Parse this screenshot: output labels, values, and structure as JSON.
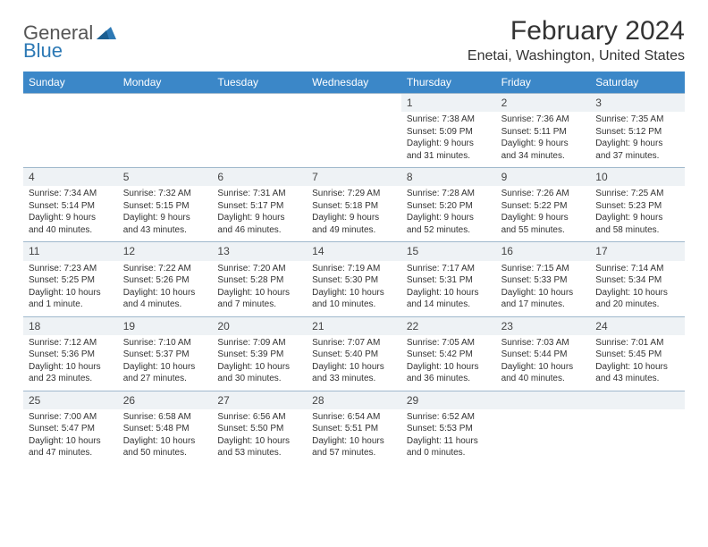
{
  "brand": {
    "part1": "General",
    "part2": "Blue"
  },
  "title": "February 2024",
  "location": "Enetai, Washington, United States",
  "colors": {
    "header_bg": "#3b87c8",
    "header_text": "#ffffff",
    "daynum_bg": "#eef2f5",
    "border": "#9fb8cc",
    "text": "#333333",
    "logo_gray": "#555555",
    "logo_blue": "#2d79b5",
    "background": "#ffffff"
  },
  "day_labels": [
    "Sunday",
    "Monday",
    "Tuesday",
    "Wednesday",
    "Thursday",
    "Friday",
    "Saturday"
  ],
  "layout": {
    "first_weekday_index": 4,
    "days_in_month": 29,
    "cells": 35
  },
  "days": {
    "1": {
      "sunrise": "7:38 AM",
      "sunset": "5:09 PM",
      "daylight": "9 hours and 31 minutes."
    },
    "2": {
      "sunrise": "7:36 AM",
      "sunset": "5:11 PM",
      "daylight": "9 hours and 34 minutes."
    },
    "3": {
      "sunrise": "7:35 AM",
      "sunset": "5:12 PM",
      "daylight": "9 hours and 37 minutes."
    },
    "4": {
      "sunrise": "7:34 AM",
      "sunset": "5:14 PM",
      "daylight": "9 hours and 40 minutes."
    },
    "5": {
      "sunrise": "7:32 AM",
      "sunset": "5:15 PM",
      "daylight": "9 hours and 43 minutes."
    },
    "6": {
      "sunrise": "7:31 AM",
      "sunset": "5:17 PM",
      "daylight": "9 hours and 46 minutes."
    },
    "7": {
      "sunrise": "7:29 AM",
      "sunset": "5:18 PM",
      "daylight": "9 hours and 49 minutes."
    },
    "8": {
      "sunrise": "7:28 AM",
      "sunset": "5:20 PM",
      "daylight": "9 hours and 52 minutes."
    },
    "9": {
      "sunrise": "7:26 AM",
      "sunset": "5:22 PM",
      "daylight": "9 hours and 55 minutes."
    },
    "10": {
      "sunrise": "7:25 AM",
      "sunset": "5:23 PM",
      "daylight": "9 hours and 58 minutes."
    },
    "11": {
      "sunrise": "7:23 AM",
      "sunset": "5:25 PM",
      "daylight": "10 hours and 1 minute."
    },
    "12": {
      "sunrise": "7:22 AM",
      "sunset": "5:26 PM",
      "daylight": "10 hours and 4 minutes."
    },
    "13": {
      "sunrise": "7:20 AM",
      "sunset": "5:28 PM",
      "daylight": "10 hours and 7 minutes."
    },
    "14": {
      "sunrise": "7:19 AM",
      "sunset": "5:30 PM",
      "daylight": "10 hours and 10 minutes."
    },
    "15": {
      "sunrise": "7:17 AM",
      "sunset": "5:31 PM",
      "daylight": "10 hours and 14 minutes."
    },
    "16": {
      "sunrise": "7:15 AM",
      "sunset": "5:33 PM",
      "daylight": "10 hours and 17 minutes."
    },
    "17": {
      "sunrise": "7:14 AM",
      "sunset": "5:34 PM",
      "daylight": "10 hours and 20 minutes."
    },
    "18": {
      "sunrise": "7:12 AM",
      "sunset": "5:36 PM",
      "daylight": "10 hours and 23 minutes."
    },
    "19": {
      "sunrise": "7:10 AM",
      "sunset": "5:37 PM",
      "daylight": "10 hours and 27 minutes."
    },
    "20": {
      "sunrise": "7:09 AM",
      "sunset": "5:39 PM",
      "daylight": "10 hours and 30 minutes."
    },
    "21": {
      "sunrise": "7:07 AM",
      "sunset": "5:40 PM",
      "daylight": "10 hours and 33 minutes."
    },
    "22": {
      "sunrise": "7:05 AM",
      "sunset": "5:42 PM",
      "daylight": "10 hours and 36 minutes."
    },
    "23": {
      "sunrise": "7:03 AM",
      "sunset": "5:44 PM",
      "daylight": "10 hours and 40 minutes."
    },
    "24": {
      "sunrise": "7:01 AM",
      "sunset": "5:45 PM",
      "daylight": "10 hours and 43 minutes."
    },
    "25": {
      "sunrise": "7:00 AM",
      "sunset": "5:47 PM",
      "daylight": "10 hours and 47 minutes."
    },
    "26": {
      "sunrise": "6:58 AM",
      "sunset": "5:48 PM",
      "daylight": "10 hours and 50 minutes."
    },
    "27": {
      "sunrise": "6:56 AM",
      "sunset": "5:50 PM",
      "daylight": "10 hours and 53 minutes."
    },
    "28": {
      "sunrise": "6:54 AM",
      "sunset": "5:51 PM",
      "daylight": "10 hours and 57 minutes."
    },
    "29": {
      "sunrise": "6:52 AM",
      "sunset": "5:53 PM",
      "daylight": "11 hours and 0 minutes."
    }
  },
  "labels": {
    "sunrise_prefix": "Sunrise: ",
    "sunset_prefix": "Sunset: ",
    "daylight_prefix": "Daylight: "
  }
}
